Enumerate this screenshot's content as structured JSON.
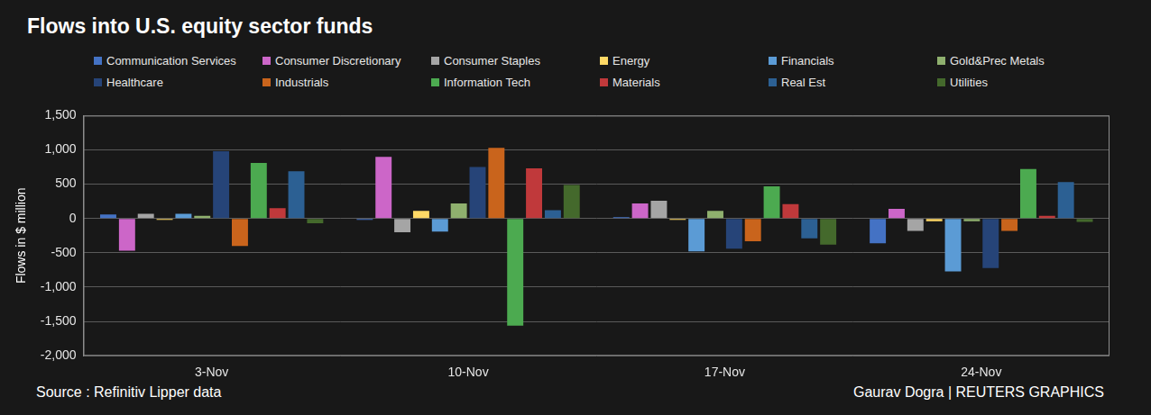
{
  "chart_data": {
    "type": "bar",
    "title": "Flows into U.S. equity sector funds",
    "y_label": "Flows in $ million",
    "annotations": [
      "Source : Refinitiv Lipper data",
      "Gaurav Dogra | REUTERS GRAPHICS"
    ],
    "categories": [
      "3-Nov",
      "10-Nov",
      "17-Nov",
      "24-Nov"
    ],
    "series": [
      {
        "name": "Communication Services",
        "color": "#4472c4",
        "values": [
          60,
          -20,
          20,
          -360
        ]
      },
      {
        "name": "Consumer Discretionary",
        "color": "#cc66c8",
        "values": [
          -470,
          900,
          220,
          140
        ]
      },
      {
        "name": "Consumer Staples",
        "color": "#a5a5a5",
        "values": [
          70,
          -200,
          260,
          -180
        ]
      },
      {
        "name": "Energy",
        "color": "#ffd966",
        "values": [
          -20,
          110,
          -20,
          -40
        ]
      },
      {
        "name": "Financials",
        "color": "#5b9bd5",
        "values": [
          70,
          -190,
          -480,
          -770
        ]
      },
      {
        "name": "Gold&Prec Metals",
        "color": "#8fb06e",
        "values": [
          40,
          220,
          110,
          -40
        ]
      },
      {
        "name": "Healthcare",
        "color": "#264478",
        "values": [
          980,
          750,
          -440,
          -720
        ]
      },
      {
        "name": "Industrials",
        "color": "#c9641c",
        "values": [
          -400,
          1030,
          -330,
          -180
        ]
      },
      {
        "name": "Information Tech",
        "color": "#4caa50",
        "values": [
          810,
          -1560,
          470,
          720
        ]
      },
      {
        "name": "Materials",
        "color": "#c0393b",
        "values": [
          150,
          730,
          210,
          40
        ]
      },
      {
        "name": "Real Est",
        "color": "#2c6093",
        "values": [
          690,
          120,
          -290,
          530
        ]
      },
      {
        "name": "Utilities",
        "color": "#44692c",
        "values": [
          -70,
          490,
          -380,
          -50
        ]
      }
    ],
    "ylim": [
      -2000,
      1500
    ],
    "yticks": [
      {
        "value": -2000,
        "label": "-2,000"
      },
      {
        "value": -1500,
        "label": "-1,500"
      },
      {
        "value": -1000,
        "label": "-1,000"
      },
      -500,
      0,
      500,
      {
        "value": 1000,
        "label": "1,000"
      },
      {
        "value": 1500,
        "label": "1,500"
      }
    ],
    "grid": true,
    "legend": "top"
  }
}
